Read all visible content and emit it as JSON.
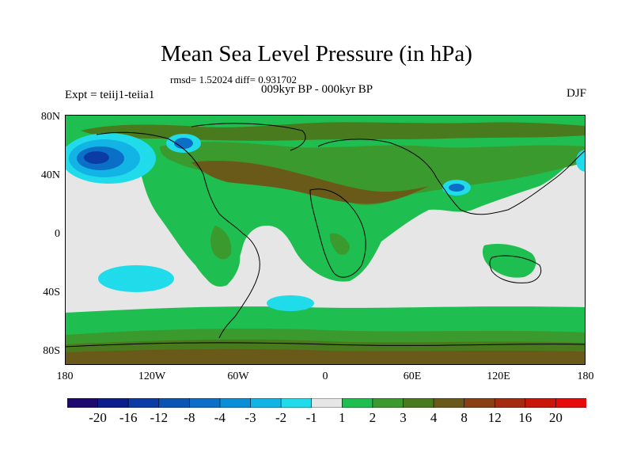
{
  "figure": {
    "title": "Mean Sea Level Pressure (in hPa)",
    "stats": "rmsd= 1.52024 diff= 0.931702",
    "experiment": "Expt = teiij1-teiia1",
    "period": "009kyr BP - 000kyr BP",
    "season": "DJF"
  },
  "axes": {
    "lat_labels": [
      "80N",
      "40N",
      "0",
      "40S",
      "80S"
    ],
    "lon_labels": [
      "180",
      "120W",
      "60W",
      "0",
      "60E",
      "120E",
      "180"
    ]
  },
  "colorbar": {
    "labels": [
      "-20",
      "-16",
      "-12",
      "-8",
      "-4",
      "-3",
      "-2",
      "-1",
      "1",
      "2",
      "3",
      "4",
      "8",
      "12",
      "16",
      "20"
    ],
    "colors": [
      "#1e0a6e",
      "#0b1e8c",
      "#0b3ca5",
      "#0a55b4",
      "#0b6fc8",
      "#0b8ed8",
      "#12b4e6",
      "#20dcea",
      "#e6e6e6",
      "#1fbe50",
      "#3b9a2e",
      "#4a7a1e",
      "#6a5a1a",
      "#8a4014",
      "#a42a10",
      "#c8160a",
      "#e60a0a"
    ]
  },
  "map_colors": {
    "ocean_neutral": "#e6e6e6",
    "light_green": "#1fbe50",
    "mid_green": "#3b9a2e",
    "olive": "#4a7a1e",
    "brown": "#6a5a1a",
    "light_cyan": "#20dcea",
    "cyan": "#12b4e6",
    "blue": "#0b6fc8",
    "dark_blue": "#0b3ca5",
    "coast": "#000000"
  }
}
